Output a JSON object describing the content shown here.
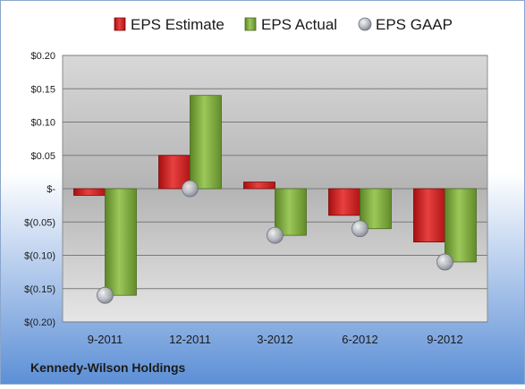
{
  "chart_data": {
    "type": "bar",
    "title": "",
    "xlabel": "",
    "ylabel": "",
    "footer": "Kennedy-Wilson Holdings",
    "categories": [
      "9-2011",
      "12-2011",
      "3-2012",
      "6-2012",
      "9-2012"
    ],
    "series": [
      {
        "name": "EPS Estimate",
        "kind": "bar",
        "color": "#d42020",
        "values": [
          -0.01,
          0.05,
          0.01,
          -0.04,
          -0.08
        ]
      },
      {
        "name": "EPS Actual",
        "kind": "bar",
        "color": "#7aa83a",
        "values": [
          -0.16,
          0.14,
          -0.07,
          -0.06,
          -0.11
        ]
      },
      {
        "name": "EPS GAAP",
        "kind": "marker",
        "color": "#b8bcc4",
        "values": [
          -0.16,
          0.0,
          -0.07,
          -0.06,
          -0.11
        ]
      }
    ],
    "ylim": [
      -0.2,
      0.2
    ],
    "yticks": [
      0.2,
      0.15,
      0.1,
      0.05,
      0.0,
      -0.05,
      -0.1,
      -0.15,
      -0.2
    ],
    "ytick_labels": [
      "$0.20",
      "$0.15",
      "$0.10",
      "$0.05",
      "$-",
      "$(0.05)",
      "$(0.10)",
      "$(0.15)",
      "$(0.20)"
    ],
    "grid": true,
    "legend_position": "top"
  }
}
